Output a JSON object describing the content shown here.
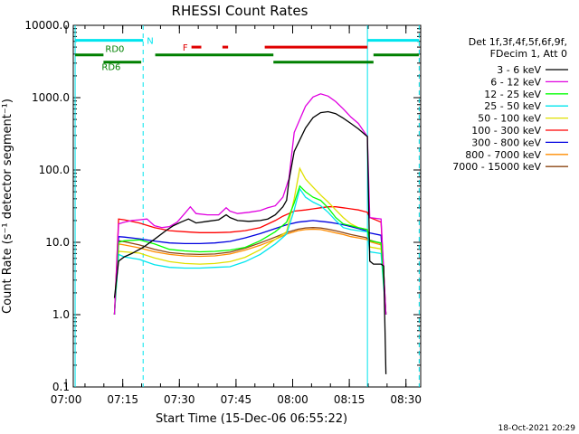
{
  "chart_data": {
    "type": "line",
    "title": "RHESSI Count Rates",
    "xlabel": "Start Time (15-Dec-06 06:55:22)",
    "ylabel": "Count Rate (s⁻¹ detector segment⁻¹)",
    "yscale": "log",
    "ylim": [
      0.1,
      10000
    ],
    "xlim_minutes": [
      6.5,
      98.5
    ],
    "x_unit": "minutes since 06:55:22",
    "ytick_labels": [
      "10000.0",
      "1000.0",
      "100.0",
      "10.0",
      "1.0",
      "0.1"
    ],
    "ytick_values": [
      10000,
      1000,
      100,
      10,
      1,
      0.1
    ],
    "xtick_labels": [
      "07:00",
      "07:15",
      "07:30",
      "07:45",
      "08:00",
      "08:15",
      "08:30"
    ],
    "xtick_minutes": [
      4.6,
      19.6,
      34.6,
      49.6,
      64.6,
      79.6,
      94.6
    ],
    "legend_header": [
      "Det 1f,3f,4f,5f,6f,9f,",
      "FDecim 1, Att 0"
    ],
    "legend_position": "right",
    "timestamp": "18-Oct-2021 20:29",
    "vertical_lines": [
      {
        "x_minute": 7.0,
        "style": "solid",
        "color": "#00e5ee"
      },
      {
        "x_minute": 25.0,
        "style": "dashed",
        "color": "#00e5ee"
      },
      {
        "x_minute": 84.4,
        "style": "solid",
        "color": "#00e5ee"
      },
      {
        "x_minute": 98.1,
        "style": "dashed",
        "color": "#00e5ee"
      }
    ],
    "flag_bars": [
      {
        "label": "N",
        "color": "#00e5ee",
        "y": 6200,
        "segments": [
          [
            7.0,
            25.0
          ],
          [
            84.4,
            98.1
          ]
        ]
      },
      {
        "label": "RD0",
        "color": "#008000",
        "y": 3900,
        "segments": [
          [
            7.0,
            14.5
          ]
        ]
      },
      {
        "label": "RD6",
        "color": "#008000",
        "y": 3100,
        "segments": [
          [
            14.5,
            24.5
          ]
        ]
      },
      {
        "label": "",
        "color": "#008000",
        "y": 3900,
        "segments": [
          [
            28.2,
            59.5
          ],
          [
            86.0,
            98.0
          ]
        ]
      },
      {
        "label": "",
        "color": "#008000",
        "y": 3100,
        "segments": [
          [
            59.5,
            86.0
          ]
        ]
      },
      {
        "label": "F",
        "color": "#e00000",
        "y": 5000,
        "segments": [
          [
            37.8,
            40.4
          ],
          [
            46.0,
            47.5
          ],
          [
            57.2,
            84.4
          ]
        ]
      }
    ],
    "series": [
      {
        "name": "3 - 6 keV",
        "color": "#000000",
        "x": [
          17.4,
          18.5,
          20,
          22,
          25,
          28,
          31,
          33,
          35,
          37,
          39,
          42,
          45,
          47,
          48,
          50,
          53,
          56,
          58,
          60,
          62,
          63,
          63.6,
          65,
          68,
          70,
          72,
          74,
          76,
          78,
          80,
          82,
          84,
          84.4,
          85,
          86,
          88,
          88.7,
          89.3
        ],
        "y": [
          1.7,
          5.5,
          6.3,
          7,
          8.5,
          11,
          14.5,
          17,
          19,
          21,
          18.5,
          19.5,
          20.5,
          24,
          22,
          20,
          19.5,
          20,
          21,
          24,
          31,
          38,
          70,
          180,
          380,
          530,
          620,
          640,
          600,
          520,
          440,
          370,
          300,
          290,
          5.5,
          5,
          5,
          4.7,
          0.15
        ]
      },
      {
        "name": "6 - 12 keV",
        "color": "#e000e0",
        "x": [
          17.4,
          18.5,
          20,
          22,
          24,
          26,
          28,
          30,
          32,
          34,
          36,
          37.5,
          39,
          42,
          45,
          47,
          48,
          50,
          53,
          56,
          58,
          60,
          62,
          63.6,
          65,
          68,
          70,
          72,
          74,
          76,
          78,
          80,
          82,
          84,
          84.4,
          85,
          88,
          89.3
        ],
        "y": [
          1.0,
          18,
          19,
          20,
          20.5,
          21,
          17,
          16,
          16.5,
          19,
          25,
          31,
          25,
          24,
          24,
          30,
          27,
          25,
          26,
          27.5,
          30,
          32,
          42,
          75,
          330,
          760,
          1020,
          1130,
          1050,
          880,
          700,
          540,
          440,
          310,
          290,
          22,
          21,
          1.0
        ]
      },
      {
        "name": "12 - 25 keV",
        "color": "#00ff00",
        "x": [
          17.4,
          18.5,
          20,
          24,
          28,
          32,
          36,
          40,
          44,
          48,
          52,
          56,
          60,
          63,
          65,
          66.5,
          68,
          70,
          72,
          74,
          76,
          78,
          80,
          82,
          84.4,
          85,
          88,
          89.3
        ],
        "y": [
          1.0,
          10,
          10.5,
          10.8,
          9.5,
          8.0,
          7.6,
          7.4,
          7.5,
          7.8,
          8.5,
          10.5,
          14,
          19,
          35,
          60,
          50,
          42,
          38,
          30,
          22,
          18,
          17,
          16,
          15,
          10.5,
          9.8,
          1.0
        ]
      },
      {
        "name": "25 - 50 keV",
        "color": "#00e5ee",
        "x": [
          17.4,
          18.5,
          20,
          24,
          28,
          32,
          36,
          40,
          44,
          48,
          52,
          56,
          60,
          63,
          65,
          66.5,
          68,
          70,
          72,
          74,
          76,
          78,
          80,
          82,
          84.4,
          85,
          88,
          89.3
        ],
        "y": [
          1.0,
          6.8,
          6.3,
          5.8,
          4.9,
          4.5,
          4.4,
          4.4,
          4.5,
          4.6,
          5.4,
          6.8,
          9.5,
          13,
          28,
          55,
          42,
          36,
          32,
          26,
          20,
          16,
          15,
          14.5,
          14,
          7.4,
          7.0,
          1.0
        ]
      },
      {
        "name": "50 - 100 keV",
        "color": "#e0e000",
        "x": [
          17.4,
          18.5,
          20,
          24,
          28,
          32,
          36,
          40,
          44,
          48,
          52,
          56,
          60,
          63,
          65,
          66.5,
          68,
          70,
          72,
          74,
          76,
          78,
          80,
          82,
          84.4,
          85,
          88,
          89.3
        ],
        "y": [
          1.0,
          7.5,
          7.4,
          7.1,
          6.1,
          5.4,
          5.1,
          5.0,
          5.1,
          5.4,
          6.2,
          7.9,
          11,
          14,
          40,
          105,
          75,
          58,
          45,
          36,
          28,
          22,
          18,
          16,
          15,
          8.6,
          8.1,
          1.0
        ]
      },
      {
        "name": "100 - 300 keV",
        "color": "#ff0000",
        "x": [
          17.4,
          18.5,
          20,
          24,
          28,
          32,
          36,
          40,
          44,
          48,
          52,
          56,
          60,
          62,
          63.6,
          65,
          68,
          70,
          72,
          74,
          76,
          78,
          80,
          82,
          84.4,
          85,
          86,
          88,
          89.3
        ],
        "y": [
          1.0,
          21,
          20.5,
          18.5,
          16,
          14.5,
          14,
          13.6,
          13.6,
          13.8,
          14.5,
          16,
          20,
          23,
          25,
          27,
          28,
          29,
          30,
          31,
          31,
          30,
          29,
          28,
          26,
          22,
          21,
          19,
          1.0
        ]
      },
      {
        "name": "300 - 800 keV",
        "color": "#0000e0",
        "x": [
          17.4,
          18.5,
          20,
          24,
          28,
          32,
          36,
          40,
          44,
          48,
          52,
          56,
          60,
          63,
          66,
          68,
          70,
          72,
          74,
          76,
          78,
          80,
          82,
          84,
          84.4,
          85,
          88,
          89.3
        ],
        "y": [
          1.0,
          12,
          11.8,
          11.2,
          10.4,
          9.8,
          9.6,
          9.6,
          9.8,
          10.3,
          11.5,
          13.2,
          15.5,
          17.5,
          19,
          19.5,
          20,
          19.5,
          19,
          18.3,
          17.5,
          16.5,
          15.5,
          14.5,
          14,
          13.5,
          12.5,
          1.0
        ]
      },
      {
        "name": "800 - 7000 keV",
        "color": "#ff8c00",
        "x": [
          17.4,
          18.5,
          20,
          24,
          28,
          32,
          36,
          40,
          44,
          48,
          52,
          56,
          60,
          63,
          66,
          68,
          70,
          72,
          74,
          76,
          78,
          80,
          82,
          84,
          84.4,
          85,
          88,
          89.3
        ],
        "y": [
          1.0,
          9.5,
          9.2,
          8.4,
          7.4,
          6.8,
          6.5,
          6.4,
          6.5,
          6.9,
          7.8,
          9.1,
          11,
          13,
          14.5,
          15,
          15.2,
          15,
          14.3,
          13.5,
          12.8,
          12,
          11.5,
          11,
          10.8,
          10.2,
          9.2,
          1.0
        ]
      },
      {
        "name": "7000 - 15000 keV",
        "color": "#8b4513",
        "x": [
          17.4,
          18.5,
          20,
          24,
          28,
          32,
          36,
          40,
          44,
          48,
          52,
          56,
          60,
          63,
          66,
          68,
          70,
          72,
          74,
          76,
          78,
          80,
          82,
          84,
          84.4,
          85,
          88,
          89.3
        ],
        "y": [
          1.0,
          10.5,
          10.2,
          9.2,
          8.0,
          7.2,
          6.9,
          6.8,
          6.9,
          7.3,
          8.3,
          9.8,
          11.8,
          13.7,
          15.2,
          15.8,
          16,
          15.8,
          15.2,
          14.4,
          13.6,
          12.8,
          12.2,
          11.6,
          11.3,
          10.7,
          9.7,
          1.0
        ]
      }
    ]
  }
}
